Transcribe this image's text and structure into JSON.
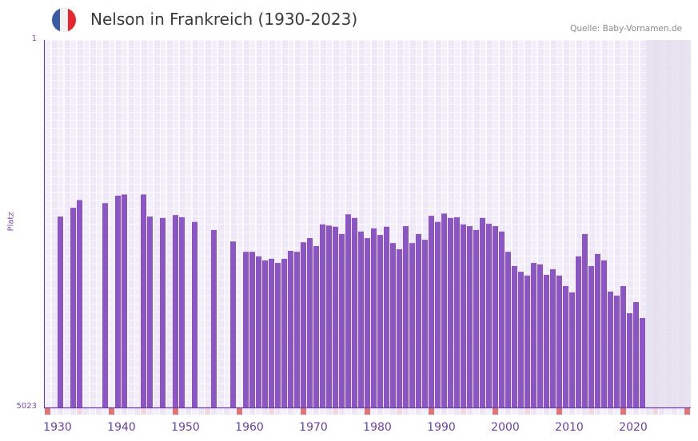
{
  "header": {
    "title": "Nelson in Frankreich (1930-2023)",
    "source": "Quelle: Baby-Vornamen.de",
    "flag_colors": [
      "#3b5aa8",
      "#f2f2f4",
      "#e8262d"
    ]
  },
  "colors": {
    "bar": "#8b55c6",
    "axis": "#6b3fa8",
    "decade_marker": "#e57373",
    "half_decade_marker": "#f5d5de",
    "future_band": "#e3deeb"
  },
  "chart_data": {
    "type": "bar",
    "title": "Nelson in Frankreich (1930-2023)",
    "xlabel": "",
    "ylabel": "Platz",
    "y_scale": "log-inverted",
    "ylim": [
      1,
      5023
    ],
    "ytick_labels": [
      "1",
      "5023"
    ],
    "xlim": [
      1930,
      2030
    ],
    "xtick_labels": [
      "1930",
      "1940",
      "1950",
      "1960",
      "1970",
      "1980",
      "1990",
      "2000",
      "2010",
      "2020"
    ],
    "grid": true,
    "points": [
      {
        "year": 1932,
        "rank": 60
      },
      {
        "year": 1934,
        "rank": 49
      },
      {
        "year": 1935,
        "rank": 41
      },
      {
        "year": 1939,
        "rank": 44
      },
      {
        "year": 1941,
        "rank": 37
      },
      {
        "year": 1942,
        "rank": 36
      },
      {
        "year": 1945,
        "rank": 36
      },
      {
        "year": 1946,
        "rank": 60
      },
      {
        "year": 1948,
        "rank": 62
      },
      {
        "year": 1950,
        "rank": 58
      },
      {
        "year": 1951,
        "rank": 61
      },
      {
        "year": 1953,
        "rank": 68
      },
      {
        "year": 1956,
        "rank": 82
      },
      {
        "year": 1959,
        "rank": 107
      },
      {
        "year": 1961,
        "rank": 136
      },
      {
        "year": 1962,
        "rank": 136
      },
      {
        "year": 1963,
        "rank": 151
      },
      {
        "year": 1964,
        "rank": 166
      },
      {
        "year": 1965,
        "rank": 160
      },
      {
        "year": 1966,
        "rank": 176
      },
      {
        "year": 1967,
        "rank": 160
      },
      {
        "year": 1968,
        "rank": 133
      },
      {
        "year": 1969,
        "rank": 136
      },
      {
        "year": 1970,
        "rank": 109
      },
      {
        "year": 1971,
        "rank": 99
      },
      {
        "year": 1972,
        "rank": 119
      },
      {
        "year": 1973,
        "rank": 72
      },
      {
        "year": 1974,
        "rank": 74
      },
      {
        "year": 1975,
        "rank": 76
      },
      {
        "year": 1976,
        "rank": 90
      },
      {
        "year": 1977,
        "rank": 57
      },
      {
        "year": 1978,
        "rank": 62
      },
      {
        "year": 1979,
        "rank": 85
      },
      {
        "year": 1980,
        "rank": 99
      },
      {
        "year": 1981,
        "rank": 79
      },
      {
        "year": 1982,
        "rank": 92
      },
      {
        "year": 1983,
        "rank": 76
      },
      {
        "year": 1984,
        "rank": 111
      },
      {
        "year": 1985,
        "rank": 128
      },
      {
        "year": 1986,
        "rank": 75
      },
      {
        "year": 1987,
        "rank": 111
      },
      {
        "year": 1988,
        "rank": 90
      },
      {
        "year": 1989,
        "rank": 103
      },
      {
        "year": 1990,
        "rank": 59
      },
      {
        "year": 1991,
        "rank": 68
      },
      {
        "year": 1992,
        "rank": 56
      },
      {
        "year": 1993,
        "rank": 62
      },
      {
        "year": 1994,
        "rank": 61
      },
      {
        "year": 1995,
        "rank": 72
      },
      {
        "year": 1996,
        "rank": 75
      },
      {
        "year": 1997,
        "rank": 82
      },
      {
        "year": 1998,
        "rank": 62
      },
      {
        "year": 1999,
        "rank": 71
      },
      {
        "year": 2000,
        "rank": 75
      },
      {
        "year": 2001,
        "rank": 85
      },
      {
        "year": 2002,
        "rank": 136
      },
      {
        "year": 2003,
        "rank": 189
      },
      {
        "year": 2004,
        "rank": 216
      },
      {
        "year": 2005,
        "rank": 236
      },
      {
        "year": 2006,
        "rank": 176
      },
      {
        "year": 2007,
        "rank": 182
      },
      {
        "year": 2008,
        "rank": 232
      },
      {
        "year": 2009,
        "rank": 204
      },
      {
        "year": 2010,
        "rank": 236
      },
      {
        "year": 2011,
        "rank": 301
      },
      {
        "year": 2012,
        "rank": 349
      },
      {
        "year": 2013,
        "rank": 151
      },
      {
        "year": 2014,
        "rank": 90
      },
      {
        "year": 2015,
        "rank": 189
      },
      {
        "year": 2016,
        "rank": 143
      },
      {
        "year": 2017,
        "rank": 166
      },
      {
        "year": 2018,
        "rank": 342
      },
      {
        "year": 2019,
        "rank": 376
      },
      {
        "year": 2020,
        "rank": 301
      },
      {
        "year": 2021,
        "rank": 565
      },
      {
        "year": 2022,
        "rank": 436
      },
      {
        "year": 2023,
        "rank": 631
      }
    ]
  }
}
